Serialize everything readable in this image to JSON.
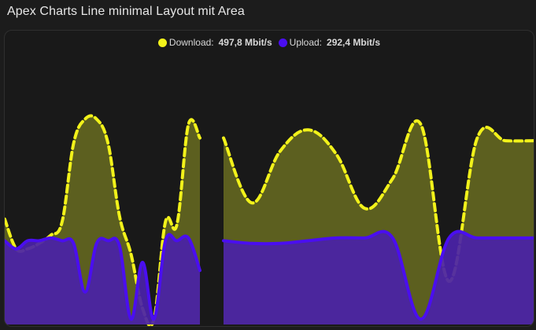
{
  "page": {
    "title": "Apex Charts Line minimal Layout mit Area"
  },
  "colors": {
    "download": "#f2f21a",
    "download_fill": "#5c5f1f",
    "upload": "#4a0ef0",
    "upload_fill": "#4a22a8",
    "background": "#1c1c1c"
  },
  "legend": {
    "items": [
      {
        "label": "Download:",
        "value": "497,8 Mbit/s"
      },
      {
        "label": "Upload:",
        "value": "292,4 Mbit/s"
      }
    ]
  },
  "chart_data": {
    "type": "area",
    "xlabel": "",
    "ylabel": "",
    "grid": false,
    "legend_position": "top-center",
    "ylim": [
      0,
      1
    ],
    "gap_between_index": [
      17,
      18
    ],
    "series": [
      {
        "name": "Download",
        "style": "dashed",
        "values": [
          0.39,
          0.28,
          0.28,
          0.3,
          0.33,
          0.38,
          0.67,
          0.76,
          0.76,
          0.67,
          0.4,
          0.26,
          0.06,
          0.02,
          0.38,
          0.37,
          0.74,
          0.69,
          0.69,
          0.45,
          0.64,
          0.72,
          0.63,
          0.43,
          0.54,
          0.74,
          0.16,
          0.69,
          0.68,
          0.68
        ]
      },
      {
        "name": "Upload",
        "style": "solid",
        "values": [
          0.31,
          0.28,
          0.31,
          0.31,
          0.32,
          0.31,
          0.3,
          0.12,
          0.3,
          0.31,
          0.29,
          0.02,
          0.23,
          0.02,
          0.31,
          0.31,
          0.32,
          0.2,
          0.31,
          0.3,
          0.3,
          0.31,
          0.32,
          0.32,
          0.32,
          0.02,
          0.32,
          0.32,
          0.32,
          0.32
        ]
      }
    ]
  }
}
